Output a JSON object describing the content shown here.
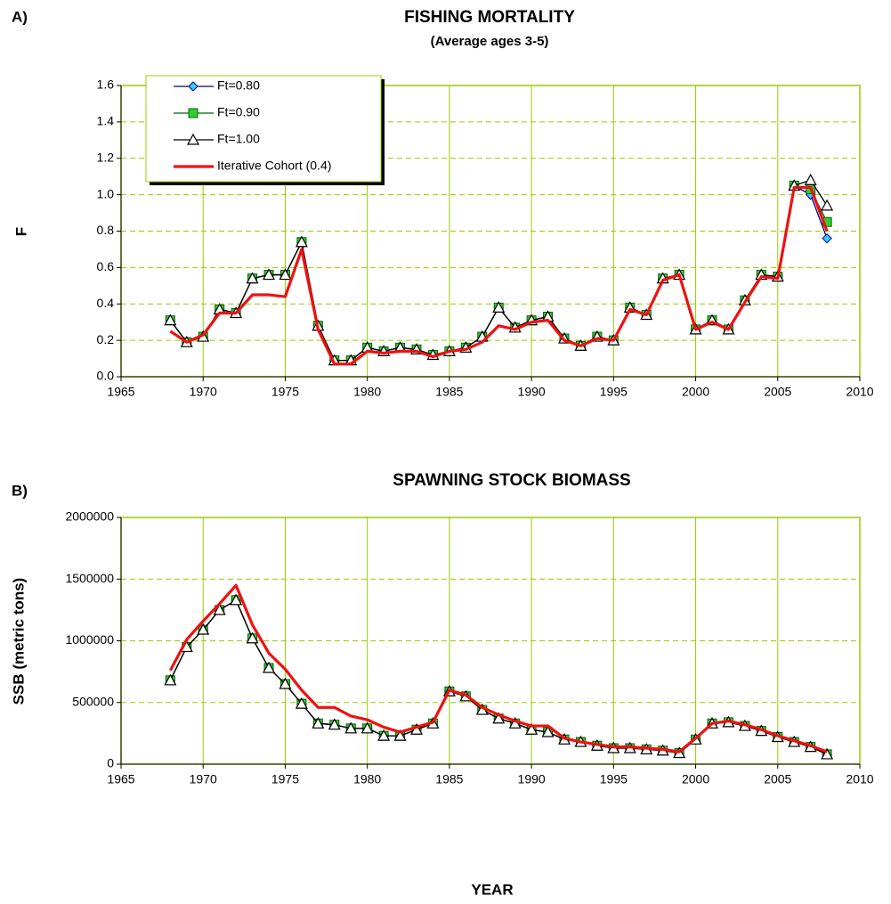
{
  "chart_data": [
    {
      "type": "line",
      "panel": "A)",
      "title": "FISHING MORTALITY",
      "subtitle": "(Average ages 3-5)",
      "ylabel": "F",
      "x": [
        1968,
        1969,
        1970,
        1971,
        1972,
        1973,
        1974,
        1975,
        1976,
        1977,
        1978,
        1979,
        1980,
        1981,
        1982,
        1983,
        1984,
        1985,
        1986,
        1987,
        1988,
        1989,
        1990,
        1991,
        1992,
        1993,
        1994,
        1995,
        1996,
        1997,
        1998,
        1999,
        2000,
        2001,
        2002,
        2003,
        2004,
        2005,
        2006,
        2007,
        2008
      ],
      "xlim": [
        1965,
        2010
      ],
      "xticks": [
        1965,
        1970,
        1975,
        1980,
        1985,
        1990,
        1995,
        2000,
        2005,
        2010
      ],
      "ylim": [
        0,
        1.6
      ],
      "yticks": [
        {
          "value": 0,
          "label": "0.0"
        },
        0.2,
        0.4,
        0.6,
        0.8,
        {
          "value": 1,
          "label": "1.0"
        },
        1.2,
        1.4,
        1.6
      ],
      "grid": true,
      "legend": "upper left",
      "series": [
        {
          "name": "Ft=0.80",
          "color": "#000080",
          "marker": "diamond",
          "marker_color": "#33ccff",
          "values": [
            0.31,
            0.19,
            0.22,
            0.37,
            0.35,
            0.54,
            0.56,
            0.56,
            0.74,
            0.28,
            0.09,
            0.09,
            0.16,
            0.14,
            0.16,
            0.15,
            0.12,
            0.14,
            0.16,
            0.22,
            0.38,
            0.27,
            0.31,
            0.33,
            0.21,
            0.17,
            0.22,
            0.2,
            0.38,
            0.34,
            0.54,
            0.56,
            0.26,
            0.31,
            0.26,
            0.42,
            0.56,
            0.55,
            1.05,
            1.0,
            0.76
          ]
        },
        {
          "name": "Ft=0.90",
          "color": "#006600",
          "marker": "square",
          "marker_color": "#33cc33",
          "values": [
            0.31,
            0.19,
            0.22,
            0.37,
            0.35,
            0.54,
            0.56,
            0.56,
            0.74,
            0.28,
            0.09,
            0.09,
            0.16,
            0.14,
            0.16,
            0.15,
            0.12,
            0.14,
            0.16,
            0.22,
            0.38,
            0.27,
            0.31,
            0.33,
            0.21,
            0.17,
            0.22,
            0.2,
            0.38,
            0.34,
            0.54,
            0.56,
            0.26,
            0.31,
            0.26,
            0.42,
            0.56,
            0.55,
            1.05,
            1.03,
            0.85
          ]
        },
        {
          "name": "Ft=1.00",
          "color": "#000000",
          "marker": "triangle",
          "marker_color": "#ffffff",
          "values": [
            0.31,
            0.19,
            0.22,
            0.37,
            0.35,
            0.54,
            0.56,
            0.56,
            0.74,
            0.28,
            0.09,
            0.09,
            0.16,
            0.14,
            0.16,
            0.15,
            0.12,
            0.14,
            0.16,
            0.22,
            0.38,
            0.27,
            0.31,
            0.33,
            0.21,
            0.17,
            0.22,
            0.2,
            0.38,
            0.34,
            0.54,
            0.56,
            0.26,
            0.31,
            0.26,
            0.42,
            0.56,
            0.55,
            1.05,
            1.08,
            0.94
          ]
        },
        {
          "name": "Iterative Cohort (0.4)",
          "color": "#ee1111",
          "values": [
            0.25,
            0.19,
            0.23,
            0.35,
            0.35,
            0.45,
            0.45,
            0.44,
            0.7,
            0.26,
            0.07,
            0.07,
            0.14,
            0.13,
            0.14,
            0.14,
            0.11,
            0.14,
            0.15,
            0.19,
            0.28,
            0.26,
            0.3,
            0.31,
            0.2,
            0.17,
            0.21,
            0.2,
            0.37,
            0.34,
            0.53,
            0.56,
            0.26,
            0.3,
            0.26,
            0.41,
            0.55,
            0.54,
            1.04,
            1.04,
            0.8
          ]
        }
      ]
    },
    {
      "type": "line",
      "panel": "B)",
      "title": "SPAWNING STOCK BIOMASS",
      "ylabel": "SSB (metric tons)",
      "xlabel": "YEAR",
      "x": [
        1968,
        1969,
        1970,
        1971,
        1972,
        1973,
        1974,
        1975,
        1976,
        1977,
        1978,
        1979,
        1980,
        1981,
        1982,
        1983,
        1984,
        1985,
        1986,
        1987,
        1988,
        1989,
        1990,
        1991,
        1992,
        1993,
        1994,
        1995,
        1996,
        1997,
        1998,
        1999,
        2000,
        2001,
        2002,
        2003,
        2004,
        2005,
        2006,
        2007,
        2008
      ],
      "xlim": [
        1965,
        2010
      ],
      "xticks": [
        1965,
        1970,
        1975,
        1980,
        1985,
        1990,
        1995,
        2000,
        2005,
        2010
      ],
      "ylim": [
        0,
        2000000
      ],
      "yticks": [
        0,
        500000,
        1000000,
        1500000,
        2000000
      ],
      "grid": true,
      "series": [
        {
          "color": "#000080",
          "marker": "diamond",
          "marker_color": "#33ccff",
          "values": [
            680000,
            950000,
            1090000,
            1250000,
            1330000,
            1020000,
            780000,
            650000,
            490000,
            330000,
            320000,
            290000,
            290000,
            230000,
            230000,
            280000,
            330000,
            590000,
            550000,
            440000,
            370000,
            330000,
            280000,
            260000,
            200000,
            180000,
            150000,
            130000,
            130000,
            120000,
            110000,
            90000,
            200000,
            330000,
            340000,
            310000,
            270000,
            220000,
            180000,
            140000,
            80000
          ]
        },
        {
          "color": "#006600",
          "marker": "square",
          "marker_color": "#33cc33",
          "values": [
            680000,
            950000,
            1090000,
            1250000,
            1330000,
            1020000,
            780000,
            650000,
            490000,
            330000,
            320000,
            290000,
            290000,
            230000,
            230000,
            280000,
            330000,
            590000,
            550000,
            440000,
            370000,
            330000,
            280000,
            260000,
            200000,
            180000,
            150000,
            130000,
            130000,
            120000,
            110000,
            90000,
            200000,
            330000,
            340000,
            310000,
            270000,
            220000,
            180000,
            140000,
            80000
          ]
        },
        {
          "color": "#000000",
          "marker": "triangle",
          "marker_color": "#ffffff",
          "values": [
            680000,
            950000,
            1090000,
            1250000,
            1330000,
            1020000,
            780000,
            650000,
            490000,
            330000,
            320000,
            290000,
            290000,
            230000,
            230000,
            280000,
            330000,
            590000,
            550000,
            440000,
            370000,
            330000,
            280000,
            260000,
            200000,
            180000,
            150000,
            130000,
            130000,
            120000,
            110000,
            90000,
            200000,
            330000,
            340000,
            310000,
            270000,
            220000,
            180000,
            140000,
            80000
          ]
        },
        {
          "color": "#ee1111",
          "values": [
            760000,
            1010000,
            1160000,
            1300000,
            1450000,
            1130000,
            900000,
            770000,
            600000,
            460000,
            460000,
            390000,
            360000,
            300000,
            260000,
            300000,
            340000,
            600000,
            560000,
            460000,
            400000,
            350000,
            310000,
            310000,
            210000,
            180000,
            160000,
            140000,
            140000,
            130000,
            120000,
            100000,
            210000,
            330000,
            350000,
            320000,
            280000,
            230000,
            190000,
            150000,
            100000
          ]
        }
      ]
    }
  ]
}
